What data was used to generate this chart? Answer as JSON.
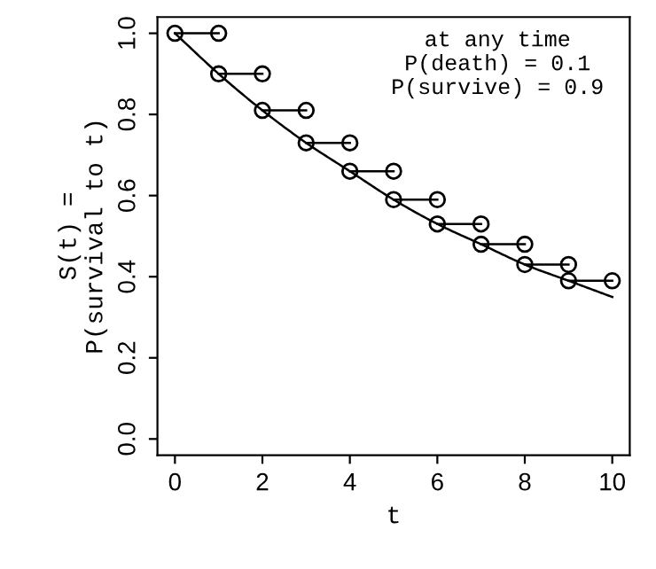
{
  "chart_data": {
    "type": "line",
    "xlabel": "t",
    "ylabel": "S(t) =\nP(survival to t)",
    "annotations": [
      "at any time\nP(death) = 0.1\nP(survive) = 0.9"
    ],
    "series": [
      {
        "color": "#000000",
        "marker": "circle",
        "x": [
          0,
          1,
          null,
          1,
          2,
          null,
          2,
          3,
          null,
          3,
          4,
          null,
          4,
          5,
          null,
          5,
          6,
          null,
          6,
          7,
          null,
          7,
          8,
          null,
          8,
          9,
          null,
          9,
          10
        ],
        "values": [
          1.0,
          1.0,
          null,
          0.9,
          0.9,
          null,
          0.81,
          0.81,
          null,
          0.73,
          0.73,
          null,
          0.66,
          0.66,
          null,
          0.59,
          0.59,
          null,
          0.53,
          0.53,
          null,
          0.48,
          0.48,
          null,
          0.43,
          0.43,
          null,
          0.39,
          0.39
        ]
      },
      {
        "color": "#000000",
        "marker": "none",
        "x": [
          0,
          1,
          2,
          3,
          4,
          5,
          6,
          7,
          8,
          9,
          10
        ],
        "values": [
          1.0,
          0.9,
          0.81,
          0.73,
          0.66,
          0.59,
          0.53,
          0.48,
          0.43,
          0.39,
          0.35
        ]
      }
    ],
    "xlim": [
      -0.4,
      10.4
    ],
    "ylim": [
      -0.04,
      1.04
    ],
    "xticks": [
      0,
      2,
      4,
      6,
      8,
      10
    ],
    "yticks": [
      {
        "value": 0,
        "label": "0.0"
      },
      {
        "value": 0.2,
        "label": "0.2"
      },
      {
        "value": 0.4,
        "label": "0.4"
      },
      {
        "value": 0.6,
        "label": "0.6"
      },
      {
        "value": 0.8,
        "label": "0.8"
      },
      {
        "value": 1,
        "label": "1.0"
      }
    ],
    "grid": false,
    "legend": false
  }
}
